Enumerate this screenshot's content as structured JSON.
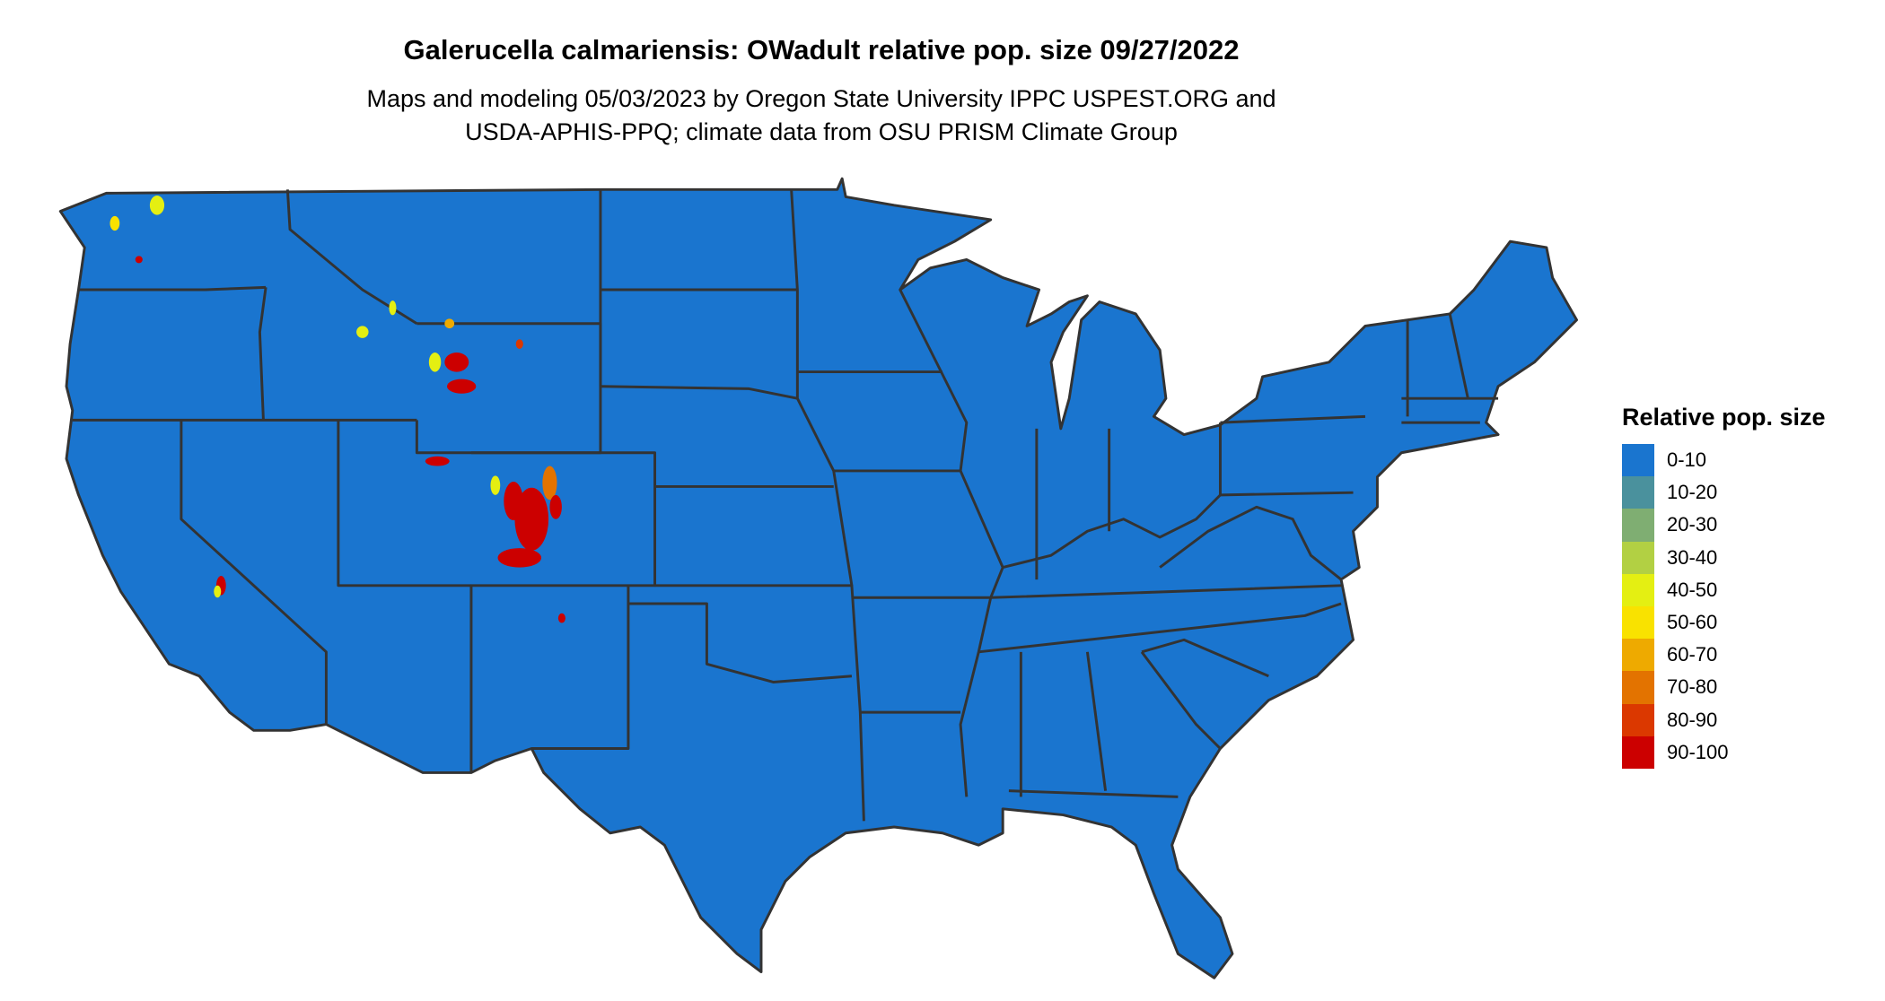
{
  "title": "Galerucella calmariensis: OWadult relative pop. size 09/27/2022",
  "subtitle_line1": "Maps and modeling 05/03/2023 by Oregon State University IPPC USPEST.ORG and",
  "subtitle_line2": "USDA-APHIS-PPQ; climate data from OSU PRISM Climate Group",
  "map": {
    "region": "Contiguous United States",
    "base_color": "#1a75cf",
    "border_color": "#333333"
  },
  "legend": {
    "title": "Relative pop. size",
    "items": [
      {
        "label": "0-10",
        "color": "#1a75cf"
      },
      {
        "label": "10-20",
        "color": "#4a919d"
      },
      {
        "label": "20-30",
        "color": "#7fae72"
      },
      {
        "label": "30-40",
        "color": "#b2d043"
      },
      {
        "label": "40-50",
        "color": "#e4ef12"
      },
      {
        "label": "50-60",
        "color": "#f9e200"
      },
      {
        "label": "60-70",
        "color": "#eeaa00"
      },
      {
        "label": "70-80",
        "color": "#e37300"
      },
      {
        "label": "80-90",
        "color": "#db3800"
      },
      {
        "label": "90-100",
        "color": "#cc0000"
      }
    ]
  }
}
